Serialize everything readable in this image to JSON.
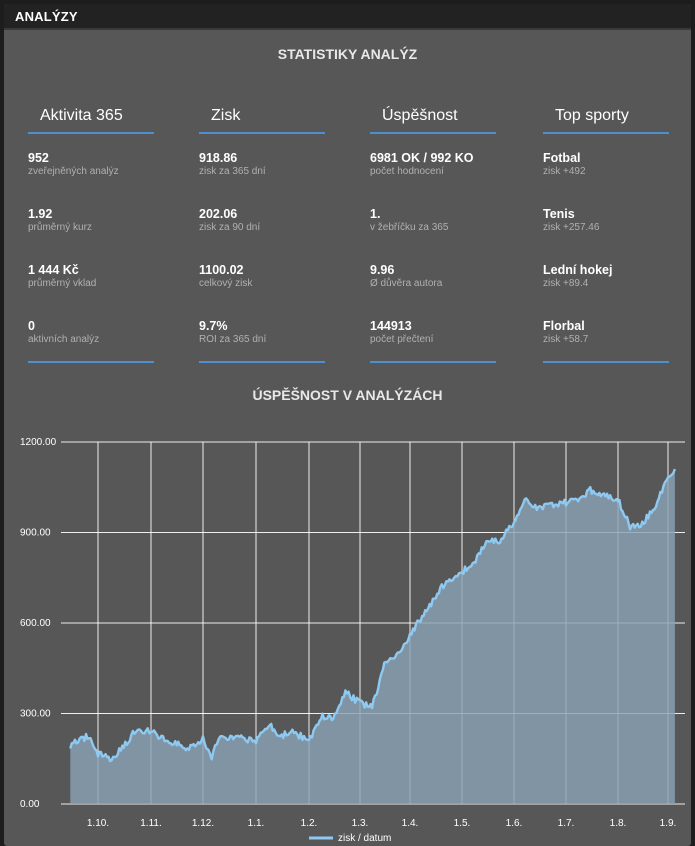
{
  "panel": {
    "title": "ANALÝZY"
  },
  "stats_section": {
    "title": "STATISTIKY ANALÝZ"
  },
  "columns": [
    {
      "heading": "Aktivita 365",
      "items": [
        {
          "value": "952",
          "label": "zveřejněných analýz"
        },
        {
          "value": "1.92",
          "label": "průměrný kurz"
        },
        {
          "value": "1 444 Kč",
          "label": "průměrný vklad"
        },
        {
          "value": "0",
          "label": "aktivních analýz"
        }
      ]
    },
    {
      "heading": "Zisk",
      "items": [
        {
          "value": "918.86",
          "label": "zisk za 365 dní"
        },
        {
          "value": "202.06",
          "label": "zisk za 90 dní"
        },
        {
          "value": "1100.02",
          "label": "celkový zisk"
        },
        {
          "value": "9.7%",
          "label": "ROI za 365 dní"
        }
      ]
    },
    {
      "heading": "Úspěšnost",
      "items": [
        {
          "value": "6981 OK / 992 KO",
          "label": "počet hodnocení"
        },
        {
          "value": "1.",
          "label": "v žebříčku za 365"
        },
        {
          "value": "9.96",
          "label": "Ø důvěra autora"
        },
        {
          "value": "144913",
          "label": "počet přečtení"
        }
      ]
    },
    {
      "heading": "Top sporty",
      "items": [
        {
          "value": "Fotbal",
          "label": "zisk +492"
        },
        {
          "value": "Tenis",
          "label": "zisk +257.46"
        },
        {
          "value": "Lední hokej",
          "label": "zisk +89.4"
        },
        {
          "value": "Florbal",
          "label": "zisk +58.7"
        }
      ]
    }
  ],
  "chart_section": {
    "title": "ÚSPĚŠNOST V ANALÝZÁCH"
  },
  "colors": {
    "line": "#8ec9f2",
    "fill": "#8aa2b6",
    "accent": "#4d8fcf"
  },
  "chart_data": {
    "type": "area",
    "title": "ÚSPĚŠNOST V ANALÝZÁCH",
    "ylim": [
      0,
      1200
    ],
    "y_ticks": [
      "0.00",
      "300.00",
      "600.00",
      "900.00",
      "1200.00"
    ],
    "x_ticks": [
      "1.10.",
      "1.11.",
      "1.12.",
      "1.1.",
      "1.2.",
      "1.3.",
      "1.4.",
      "1.5.",
      "1.6.",
      "1.7.",
      "1.8.",
      "1.9."
    ],
    "grid": true,
    "legend": "bottom",
    "series": [
      {
        "name": "zisk / datum",
        "x": [
          "15.9.",
          "25.9.",
          "1.10.",
          "8.10.",
          "15.10.",
          "22.10.",
          "1.11.",
          "8.11.",
          "15.11.",
          "22.11.",
          "1.12.",
          "6.12.",
          "10.12.",
          "15.12.",
          "22.12.",
          "1.1.",
          "8.1.",
          "15.1.",
          "22.1.",
          "1.2.",
          "8.2.",
          "15.2.",
          "22.2.",
          "1.3.",
          "8.3.",
          "15.3.",
          "22.3.",
          "1.4.",
          "8.4.",
          "15.4.",
          "22.4.",
          "1.5.",
          "8.5.",
          "15.5.",
          "22.5.",
          "1.6.",
          "8.6.",
          "15.6.",
          "22.6.",
          "1.7.",
          "8.7.",
          "15.7.",
          "22.7.",
          "1.8.",
          "8.8.",
          "15.8.",
          "22.8.",
          "1.9.",
          "5.9."
        ],
        "values": [
          195,
          225,
          165,
          150,
          185,
          240,
          245,
          215,
          200,
          185,
          215,
          150,
          225,
          215,
          220,
          210,
          265,
          225,
          240,
          210,
          290,
          285,
          370,
          335,
          320,
          460,
          490,
          560,
          620,
          680,
          740,
          770,
          800,
          870,
          870,
          930,
          1010,
          980,
          990,
          1000,
          1010,
          1040,
          1030,
          1010,
          920,
          930,
          980,
          1090,
          1110
        ]
      }
    ]
  }
}
